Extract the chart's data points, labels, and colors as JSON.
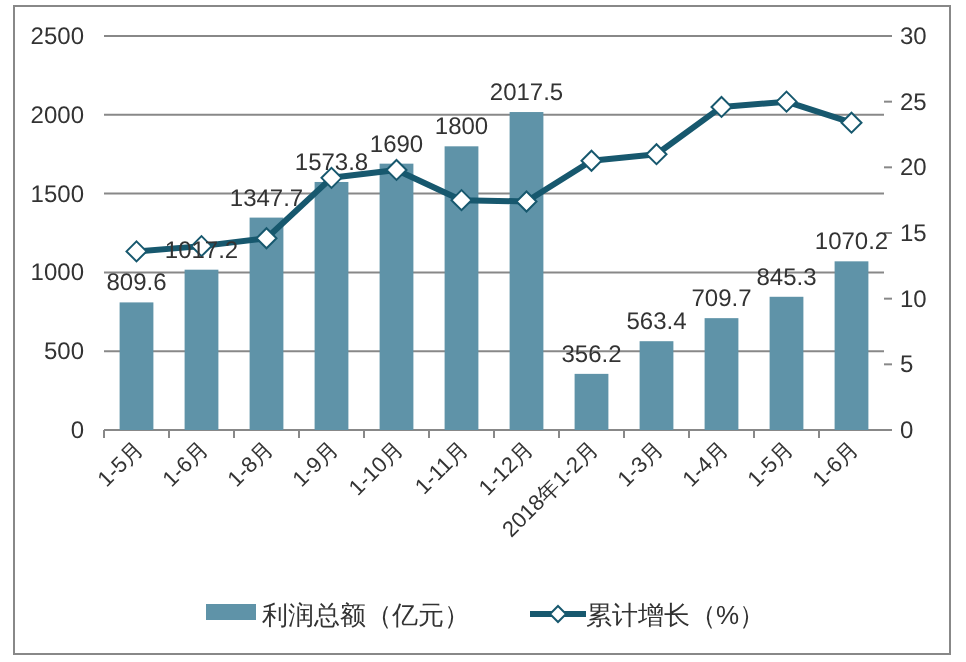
{
  "chart_data": {
    "type": "bar",
    "categories": [
      "1-5月",
      "1-6月",
      "1-8月",
      "1-9月",
      "1-10月",
      "1-11月",
      "1-12月",
      "2018年1-2月",
      "1-3月",
      "1-4月",
      "1-5月",
      "1-6月"
    ],
    "series": [
      {
        "name": "利润总额（亿元）",
        "color": "#5f93a8",
        "values": [
          809.6,
          1017.2,
          1347.7,
          1573.8,
          1690,
          1800,
          2017.5,
          356.2,
          563.4,
          709.7,
          845.3,
          1070.2
        ],
        "value_labels": [
          "809.6",
          "1017.2",
          "1347.7",
          "1573.8",
          "1690",
          "1800",
          "2017.5",
          "356.2",
          "563.4",
          "709.7",
          "845.3",
          "1070.2"
        ]
      },
      {
        "name": "累计增长（%）",
        "type": "line",
        "axis": "y2",
        "color": "#17586e",
        "marker": "diamond",
        "values": [
          13.6,
          14.0,
          14.6,
          19.2,
          19.8,
          17.5,
          17.4,
          20.5,
          21.0,
          24.6,
          25.0,
          23.4
        ]
      }
    ],
    "ylim": [
      0,
      2500
    ],
    "yticks": [
      0,
      500,
      1000,
      1500,
      2000,
      2500
    ],
    "y2lim": [
      0,
      30
    ],
    "y2ticks": [
      0,
      5,
      10,
      15,
      20,
      25,
      30
    ],
    "grid": "y",
    "legend": "bottom"
  }
}
